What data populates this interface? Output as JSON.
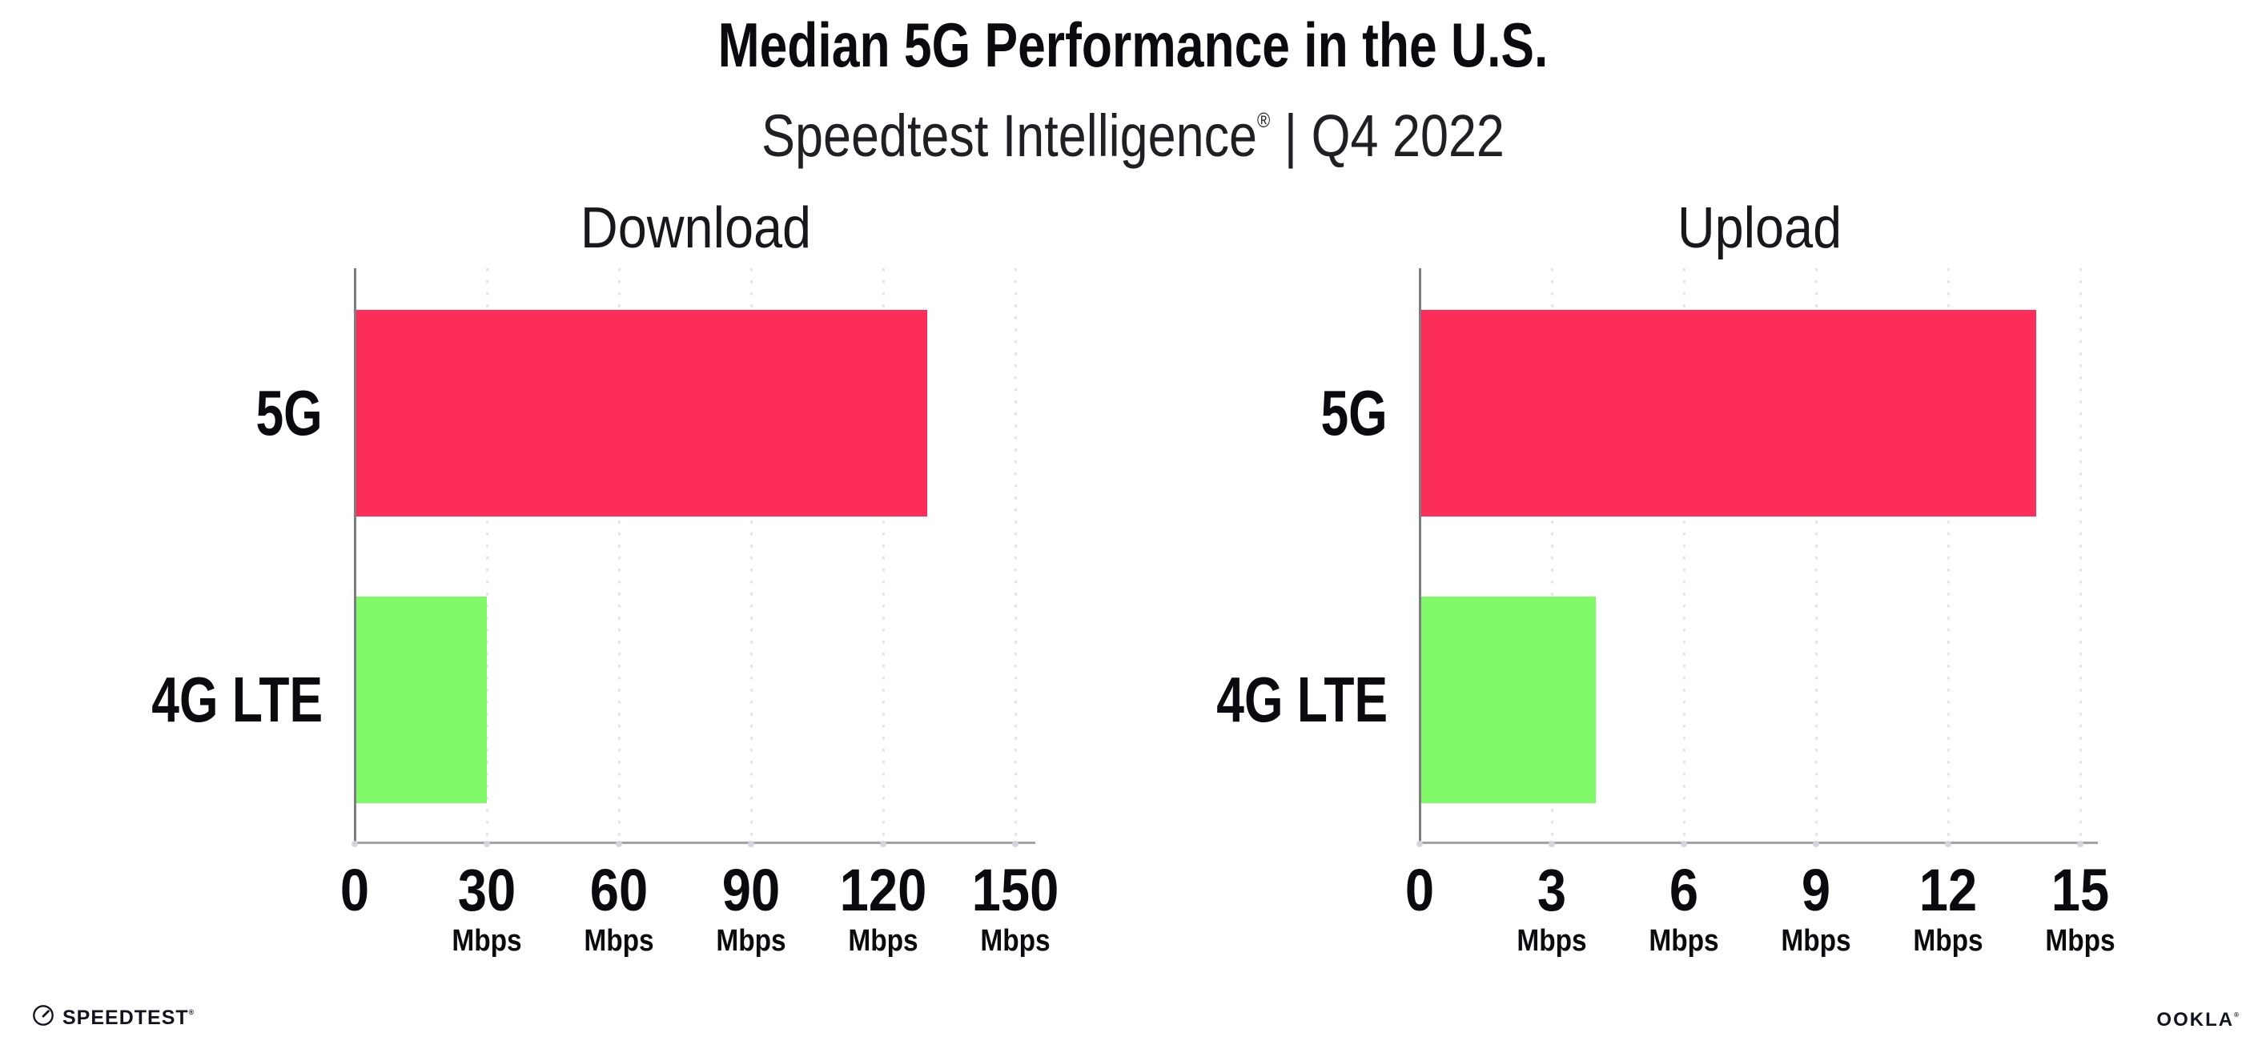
{
  "header": {
    "title": "Median 5G Performance in the U.S.",
    "subtitle_brand": "Speedtest Intelligence",
    "subtitle_reg": "®",
    "subtitle_tail": " | Q4 2022"
  },
  "footer": {
    "speedtest_label": "SPEEDTEST",
    "speedtest_reg": "®",
    "speedtest_icon": "gauge-icon",
    "ookla_label": "OOKLA",
    "ookla_reg": "®"
  },
  "colors": {
    "bar_5g_pink": "#FC2D58",
    "bar_4g_green": "#80FA69",
    "text": "#0b0b0f",
    "axis_line": "#a2a2a8",
    "spine": "#7c7c82",
    "gridline": "#e4e4ee",
    "background": "#ffffff"
  },
  "chart_data": [
    {
      "type": "bar",
      "orientation": "horizontal",
      "title": "Download",
      "categories": [
        "5G",
        "4G LTE"
      ],
      "values": [
        130,
        30
      ],
      "value_unit": "Mbps",
      "bar_colors": [
        "#FC2D58",
        "#80FA69"
      ],
      "xlim": [
        0,
        150
      ],
      "xticks": [
        0,
        30,
        60,
        90,
        120,
        150
      ],
      "tick_unit_label": "Mbps",
      "grid": "dotted-vertical",
      "legend": "none"
    },
    {
      "type": "bar",
      "orientation": "horizontal",
      "title": "Upload",
      "categories": [
        "5G",
        "4G LTE"
      ],
      "values": [
        14,
        4
      ],
      "value_unit": "Mbps",
      "bar_colors": [
        "#FC2D58",
        "#80FA69"
      ],
      "xlim": [
        0,
        15
      ],
      "xticks": [
        0,
        3,
        6,
        9,
        12,
        15
      ],
      "tick_unit_label": "Mbps",
      "grid": "dotted-vertical",
      "legend": "none"
    }
  ]
}
